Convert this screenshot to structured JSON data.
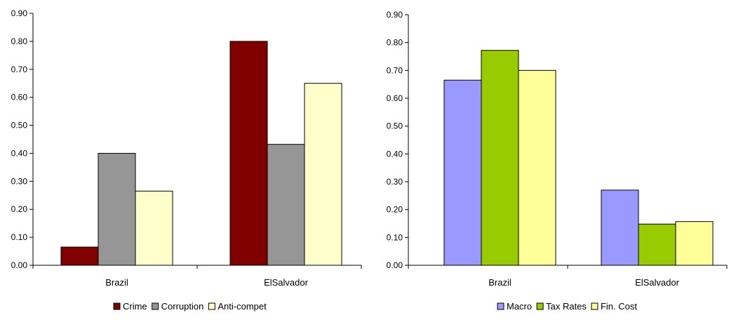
{
  "chart_data": [
    {
      "type": "bar",
      "categories": [
        "Brazil",
        "ElSalvador"
      ],
      "series": [
        {
          "name": "Crime",
          "color": "#800000",
          "values": [
            0.065,
            0.8
          ]
        },
        {
          "name": "Corruption",
          "color": "#969696",
          "values": [
            0.4,
            0.432
          ]
        },
        {
          "name": "Anti-compet",
          "color": "#FFFFCC",
          "values": [
            0.265,
            0.65
          ]
        }
      ],
      "ylim": [
        0,
        0.9
      ],
      "yticks": [
        "0.00",
        "0.10",
        "0.20",
        "0.30",
        "0.40",
        "0.50",
        "0.60",
        "0.70",
        "0.80",
        "0.90"
      ],
      "legend_position": "bottom",
      "grid": false
    },
    {
      "type": "bar",
      "categories": [
        "Brazil",
        "ElSalvador"
      ],
      "series": [
        {
          "name": "Macro",
          "color": "#9999FF",
          "values": [
            0.665,
            0.27
          ]
        },
        {
          "name": "Tax Rates",
          "color": "#99CC00",
          "values": [
            0.772,
            0.148
          ]
        },
        {
          "name": "Fin. Cost",
          "color": "#FFFF99",
          "values": [
            0.7,
            0.157
          ]
        }
      ],
      "ylim": [
        0,
        0.9
      ],
      "yticks": [
        "0.00",
        "0.10",
        "0.20",
        "0.30",
        "0.40",
        "0.50",
        "0.60",
        "0.70",
        "0.80",
        "0.90"
      ],
      "legend_position": "bottom",
      "grid": false
    }
  ]
}
